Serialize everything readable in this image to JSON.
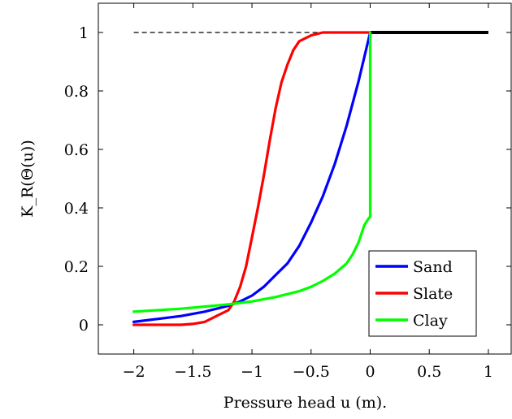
{
  "chart_data": {
    "type": "line",
    "xlabel": "Pressure head u (m).",
    "ylabel": "K_R(Θ(u))",
    "xlim": [
      -2.3,
      1.2
    ],
    "ylim": [
      -0.1,
      1.1
    ],
    "xticks": [
      -2,
      -1.5,
      -1,
      -0.5,
      0,
      0.5,
      1
    ],
    "xtick_labels": [
      "−2",
      "−1.5",
      "−1",
      "−0.5",
      "0",
      "0.5",
      "1"
    ],
    "yticks": [
      0,
      0.2,
      0.4,
      0.6,
      0.8,
      1
    ],
    "ytick_labels": [
      "0",
      "0.2",
      "0.4",
      "0.6",
      "0.8",
      "1"
    ],
    "grid": false,
    "legend_position": "bottom-right",
    "series": [
      {
        "name": "Sand",
        "color": "#0000ff",
        "x": [
          -2.0,
          -1.8,
          -1.6,
          -1.4,
          -1.2,
          -1.1,
          -1.0,
          -0.9,
          -0.8,
          -0.7,
          -0.6,
          -0.5,
          -0.4,
          -0.3,
          -0.2,
          -0.1,
          0.0
        ],
        "y": [
          0.01,
          0.02,
          0.03,
          0.045,
          0.065,
          0.08,
          0.1,
          0.13,
          0.17,
          0.21,
          0.27,
          0.35,
          0.44,
          0.55,
          0.68,
          0.83,
          1.0
        ]
      },
      {
        "name": "Slate",
        "color": "#ff0000",
        "x": [
          -2.0,
          -1.6,
          -1.5,
          -1.4,
          -1.3,
          -1.2,
          -1.15,
          -1.1,
          -1.05,
          -1.0,
          -0.95,
          -0.9,
          -0.85,
          -0.8,
          -0.75,
          -0.7,
          -0.65,
          -0.6,
          -0.5,
          -0.4,
          -0.3,
          -0.2,
          0.0
        ],
        "y": [
          0.0,
          0.0,
          0.003,
          0.01,
          0.03,
          0.05,
          0.08,
          0.13,
          0.2,
          0.3,
          0.4,
          0.51,
          0.63,
          0.74,
          0.83,
          0.89,
          0.94,
          0.97,
          0.99,
          1.0,
          1.0,
          1.0,
          1.0
        ]
      },
      {
        "name": "Clay",
        "color": "#00ff00",
        "x": [
          -2.0,
          -1.6,
          -1.2,
          -1.0,
          -0.8,
          -0.6,
          -0.5,
          -0.4,
          -0.3,
          -0.2,
          -0.15,
          -0.1,
          -0.05,
          -0.02,
          0.0,
          0.0
        ],
        "y": [
          0.045,
          0.055,
          0.07,
          0.08,
          0.095,
          0.115,
          0.13,
          0.15,
          0.175,
          0.21,
          0.24,
          0.28,
          0.34,
          0.36,
          0.37,
          1.0
        ]
      }
    ],
    "reference_lines": [
      {
        "style": "dashed",
        "color": "#000000",
        "x": [
          -2.0,
          0.0
        ],
        "y": [
          1.0,
          1.0
        ]
      },
      {
        "style": "solid-thick",
        "color": "#000000",
        "x": [
          0.0,
          1.0
        ],
        "y": [
          1.0,
          1.0
        ]
      }
    ]
  }
}
